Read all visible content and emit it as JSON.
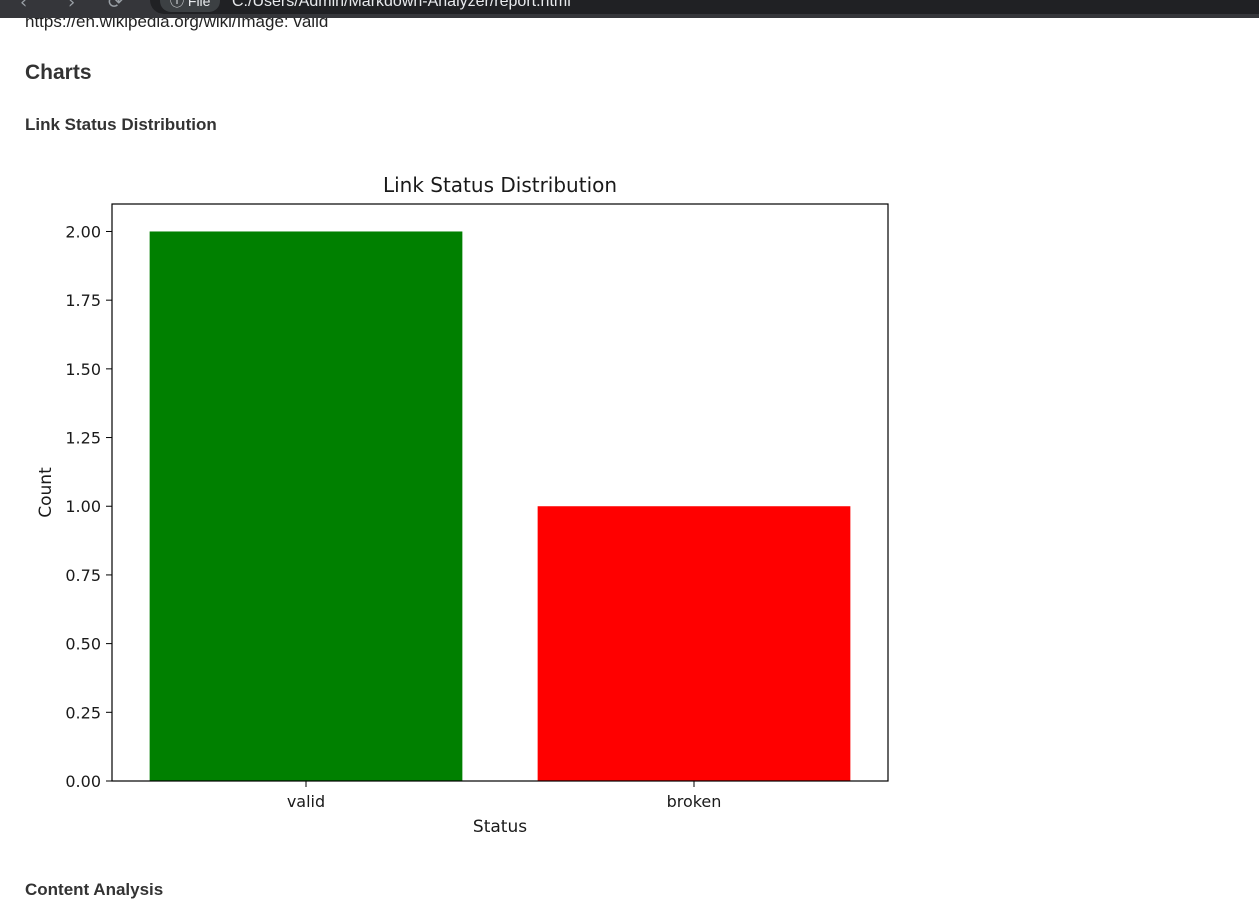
{
  "browser": {
    "back_glyph": "‹",
    "forward_glyph": "›",
    "reload_glyph": "⟳",
    "file_chip": "ⓘ File",
    "url": "C:/Users/Admin/Markdown-Analyzer/report.html"
  },
  "page": {
    "previous_line": "https://en.wikipedia.org/wiki/Image: valid",
    "charts_heading": "Charts",
    "link_status_heading": "Link Status Distribution",
    "content_analysis_heading": "Content Analysis"
  },
  "chart_data": {
    "type": "bar",
    "title": "Link Status Distribution",
    "xlabel": "Status",
    "ylabel": "Count",
    "categories": [
      "valid",
      "broken"
    ],
    "values": [
      2,
      1
    ],
    "colors": [
      "#008000",
      "#ff0000"
    ],
    "ylim": [
      0,
      2.1
    ],
    "yticks": [
      0,
      0.25,
      0.5,
      0.75,
      1.0,
      1.25,
      1.5,
      1.75,
      2.0
    ],
    "ytick_labels": [
      "0.00",
      "0.25",
      "0.50",
      "0.75",
      "1.00",
      "1.25",
      "1.50",
      "1.75",
      "2.00"
    ],
    "grid": false
  }
}
